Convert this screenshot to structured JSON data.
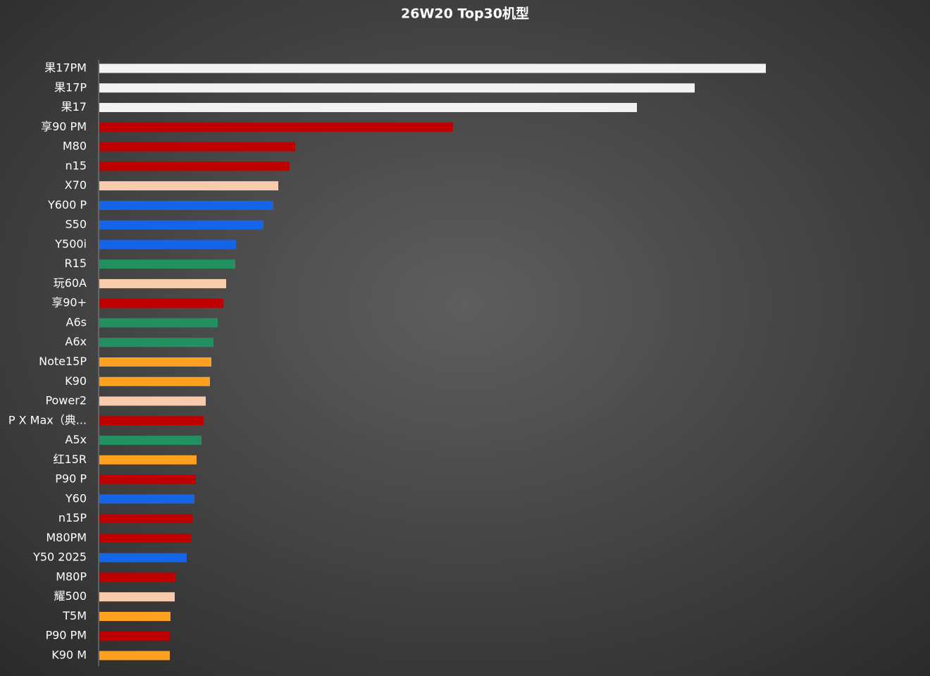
{
  "chart_data": {
    "type": "bar",
    "orientation": "horizontal",
    "title": "26W20 Top30机型",
    "categories": [
      "果17PM",
      "果17P",
      "果17",
      "享90 PM",
      "M80",
      "n15",
      "X70",
      "Y600 P",
      "S50",
      "Y500i",
      "R15",
      "玩60A",
      "享90+",
      "A6s",
      "A6x",
      "Note15P",
      "K90",
      "Power2",
      "P X Max（典...",
      "A5x",
      "红15R",
      "P90 P",
      "Y60",
      "n15P",
      "M80PM",
      "Y50 2025",
      "M80P",
      "耀500",
      "T5M",
      "P90 PM",
      "K90 M"
    ],
    "values": [
      946,
      845,
      763,
      502,
      278,
      270,
      254,
      247,
      233,
      194,
      193,
      180,
      176,
      168,
      162,
      159,
      157,
      151,
      148,
      145,
      138,
      137,
      135,
      132,
      130,
      124,
      108,
      107,
      101,
      100,
      100
    ],
    "colors": [
      "#f2f2f2",
      "#f2f2f2",
      "#f2f2f2",
      "#c00000",
      "#c00000",
      "#c00000",
      "#f8cbad",
      "#1565e8",
      "#1565e8",
      "#1565e8",
      "#239060",
      "#f8cbad",
      "#c00000",
      "#239060",
      "#239060",
      "#ffa020",
      "#ffa020",
      "#f8cbad",
      "#c00000",
      "#239060",
      "#ffa020",
      "#c00000",
      "#1565e8",
      "#c00000",
      "#c00000",
      "#1565e8",
      "#c00000",
      "#f8cbad",
      "#ffa020",
      "#c00000",
      "#ffa020"
    ]
  }
}
